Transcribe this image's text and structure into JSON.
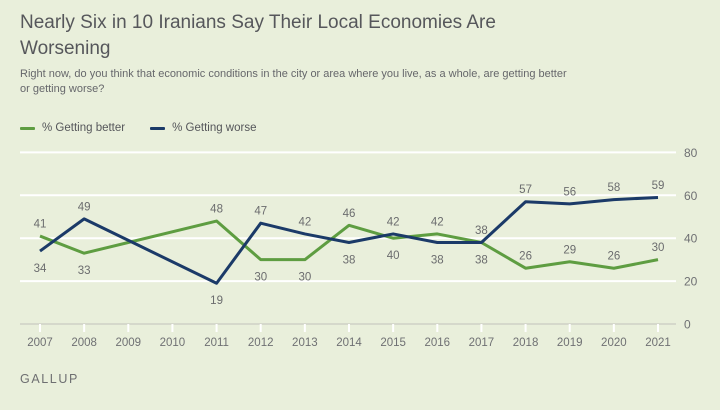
{
  "title": "Nearly Six in 10 Iranians Say Their Local Economies Are Worsening",
  "subtitle": "Right now, do you think that economic conditions in the city or area where you live, as a whole, are getting better or getting worse?",
  "legend": [
    {
      "label": "% Getting better",
      "color": "#5e9d41"
    },
    {
      "label": "% Getting worse",
      "color": "#1b3a68"
    }
  ],
  "footer": {
    "brand": "GALLUP"
  },
  "chart_data": {
    "type": "line",
    "title": "Nearly Six in 10 Iranians Say Their Local Economies Are Worsening",
    "x_axis": {
      "years": [
        2007,
        2008,
        2009,
        2010,
        2011,
        2012,
        2013,
        2014,
        2015,
        2016,
        2017,
        2018,
        2019,
        2020,
        2021
      ]
    },
    "y_axis": {
      "min": 0,
      "max": 80,
      "ticks": [
        0,
        20,
        40,
        60,
        80
      ],
      "side": "right"
    },
    "grid": {
      "horizontal": true,
      "color": "#ffffff",
      "axis_color": "#d5d8cb"
    },
    "legend_position": "top-left",
    "label_color": "#6b6c6e",
    "series": [
      {
        "name": "% Getting better",
        "color": "#5e9d41",
        "points": [
          {
            "year": 2007,
            "value": 41,
            "label_pos": "above"
          },
          {
            "year": 2008,
            "value": 33,
            "label_pos": "below"
          },
          {
            "year": 2011,
            "value": 48,
            "label_pos": "above"
          },
          {
            "year": 2012,
            "value": 30,
            "label_pos": "below"
          },
          {
            "year": 2013,
            "value": 30,
            "label_pos": "below"
          },
          {
            "year": 2014,
            "value": 46,
            "label_pos": "above"
          },
          {
            "year": 2015,
            "value": 40,
            "label_pos": "below"
          },
          {
            "year": 2016,
            "value": 42,
            "label_pos": "above"
          },
          {
            "year": 2017,
            "value": 38,
            "label_pos": "below"
          },
          {
            "year": 2018,
            "value": 26,
            "label_pos": "above"
          },
          {
            "year": 2019,
            "value": 29,
            "label_pos": "above"
          },
          {
            "year": 2020,
            "value": 26,
            "label_pos": "above"
          },
          {
            "year": 2021,
            "value": 30,
            "label_pos": "above"
          }
        ]
      },
      {
        "name": "% Getting worse",
        "color": "#1b3a68",
        "points": [
          {
            "year": 2007,
            "value": 34,
            "label_pos": "below"
          },
          {
            "year": 2008,
            "value": 49,
            "label_pos": "above"
          },
          {
            "year": 2011,
            "value": 19,
            "label_pos": "below"
          },
          {
            "year": 2012,
            "value": 47,
            "label_pos": "above"
          },
          {
            "year": 2013,
            "value": 42,
            "label_pos": "above"
          },
          {
            "year": 2014,
            "value": 38,
            "label_pos": "below"
          },
          {
            "year": 2015,
            "value": 42,
            "label_pos": "above"
          },
          {
            "year": 2016,
            "value": 38,
            "label_pos": "below"
          },
          {
            "year": 2017,
            "value": 38,
            "label_pos": "above"
          },
          {
            "year": 2018,
            "value": 57,
            "label_pos": "above"
          },
          {
            "year": 2019,
            "value": 56,
            "label_pos": "above"
          },
          {
            "year": 2020,
            "value": 58,
            "label_pos": "above"
          },
          {
            "year": 2021,
            "value": 59,
            "label_pos": "above"
          }
        ]
      }
    ]
  }
}
